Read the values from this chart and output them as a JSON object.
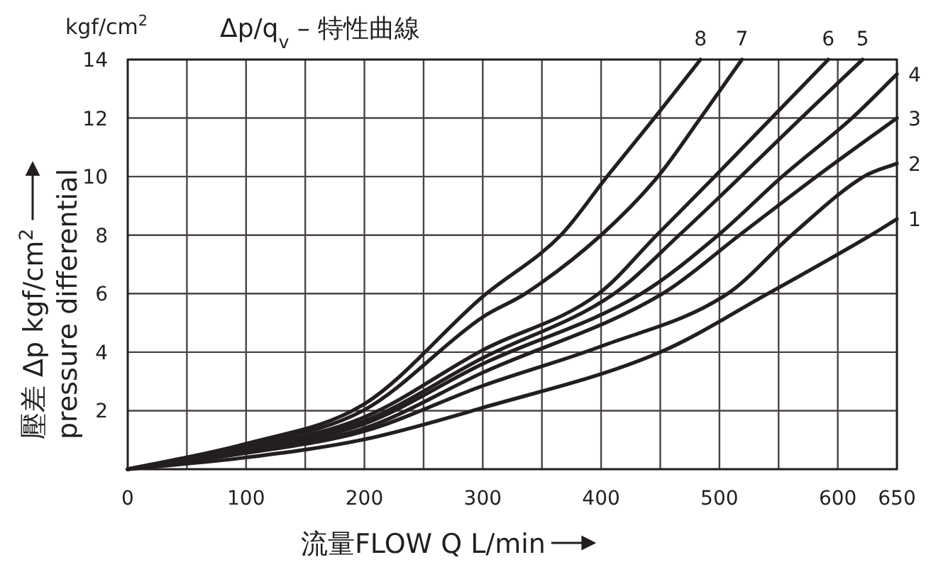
{
  "chart_data": {
    "type": "line",
    "title": "Δp/q$_{v}$ – 特性曲線",
    "xlabel": "流量FLOW  Q  L/min",
    "ylabel": "壓差 Δp kgf/cm$^{2}$",
    "annotations": [
      "kgf/cm$^{2}$",
      "pressure differential"
    ],
    "xlim": [
      0,
      650
    ],
    "ylim": [
      0,
      14
    ],
    "xticks": [
      0,
      {
        "value": 50,
        "label": null
      },
      100,
      {
        "value": 150,
        "label": null
      },
      200,
      {
        "value": 250,
        "label": null
      },
      300,
      {
        "value": 350,
        "label": null
      },
      400,
      {
        "value": 450,
        "label": null
      },
      500,
      {
        "value": 550,
        "label": null
      },
      600,
      650
    ],
    "yticks": [
      {
        "value": 0,
        "label": null
      },
      2,
      4,
      6,
      8,
      10,
      12,
      14
    ],
    "grid": true,
    "marker": "none",
    "line_style": "solid",
    "series": [
      {
        "name": "1",
        "color": "#231f20",
        "x": [
          0,
          100,
          200,
          300,
          450,
          541,
          628,
          650
        ],
        "values": [
          0,
          0.4,
          1.02,
          2.1,
          4,
          6,
          8,
          8.55
        ]
      },
      {
        "name": "2",
        "color": "#231f20",
        "x": [
          0,
          100,
          200,
          300,
          400,
          507,
          561,
          622,
          650
        ],
        "values": [
          0,
          0.55,
          1.3,
          2.85,
          4.2,
          6,
          8,
          10,
          10.45
        ]
      },
      {
        "name": "3",
        "color": "#231f20",
        "x": [
          0,
          100,
          200,
          300,
          452,
          517,
          582,
          650
        ],
        "values": [
          0,
          0.6,
          1.4,
          3.3,
          6,
          8,
          10,
          12
        ]
      },
      {
        "name": "4",
        "color": "#231f20",
        "x": [
          0,
          100,
          200,
          300,
          434,
          499,
          553,
          612,
          650
        ],
        "values": [
          0,
          0.63,
          1.55,
          3.6,
          6,
          8,
          10,
          12,
          13.5
        ]
      },
      {
        "name": "5",
        "color": "#231f20",
        "x": [
          0,
          100,
          200,
          300,
          411,
          466,
          518,
          569,
          621
        ],
        "values": [
          0,
          0.68,
          1.65,
          3.8,
          6,
          8,
          10,
          12,
          14
        ]
      },
      {
        "name": "6",
        "color": "#231f20",
        "x": [
          0,
          100,
          200,
          300,
          398,
          447,
          496,
          544,
          592
        ],
        "values": [
          0,
          0.7,
          1.78,
          4.07,
          6,
          8,
          10,
          12,
          14
        ]
      },
      {
        "name": "7",
        "color": "#231f20",
        "x": [
          0,
          100,
          200,
          300,
          336,
          400,
          448,
          484,
          519
        ],
        "values": [
          0,
          0.8,
          2.03,
          5.2,
          6,
          8,
          10,
          12,
          14
        ]
      },
      {
        "name": "8",
        "color": "#231f20",
        "x": [
          0,
          100,
          200,
          300,
          366,
          405,
          445,
          484
        ],
        "values": [
          0,
          0.87,
          2.23,
          5.9,
          8,
          10,
          12,
          14
        ]
      }
    ]
  }
}
